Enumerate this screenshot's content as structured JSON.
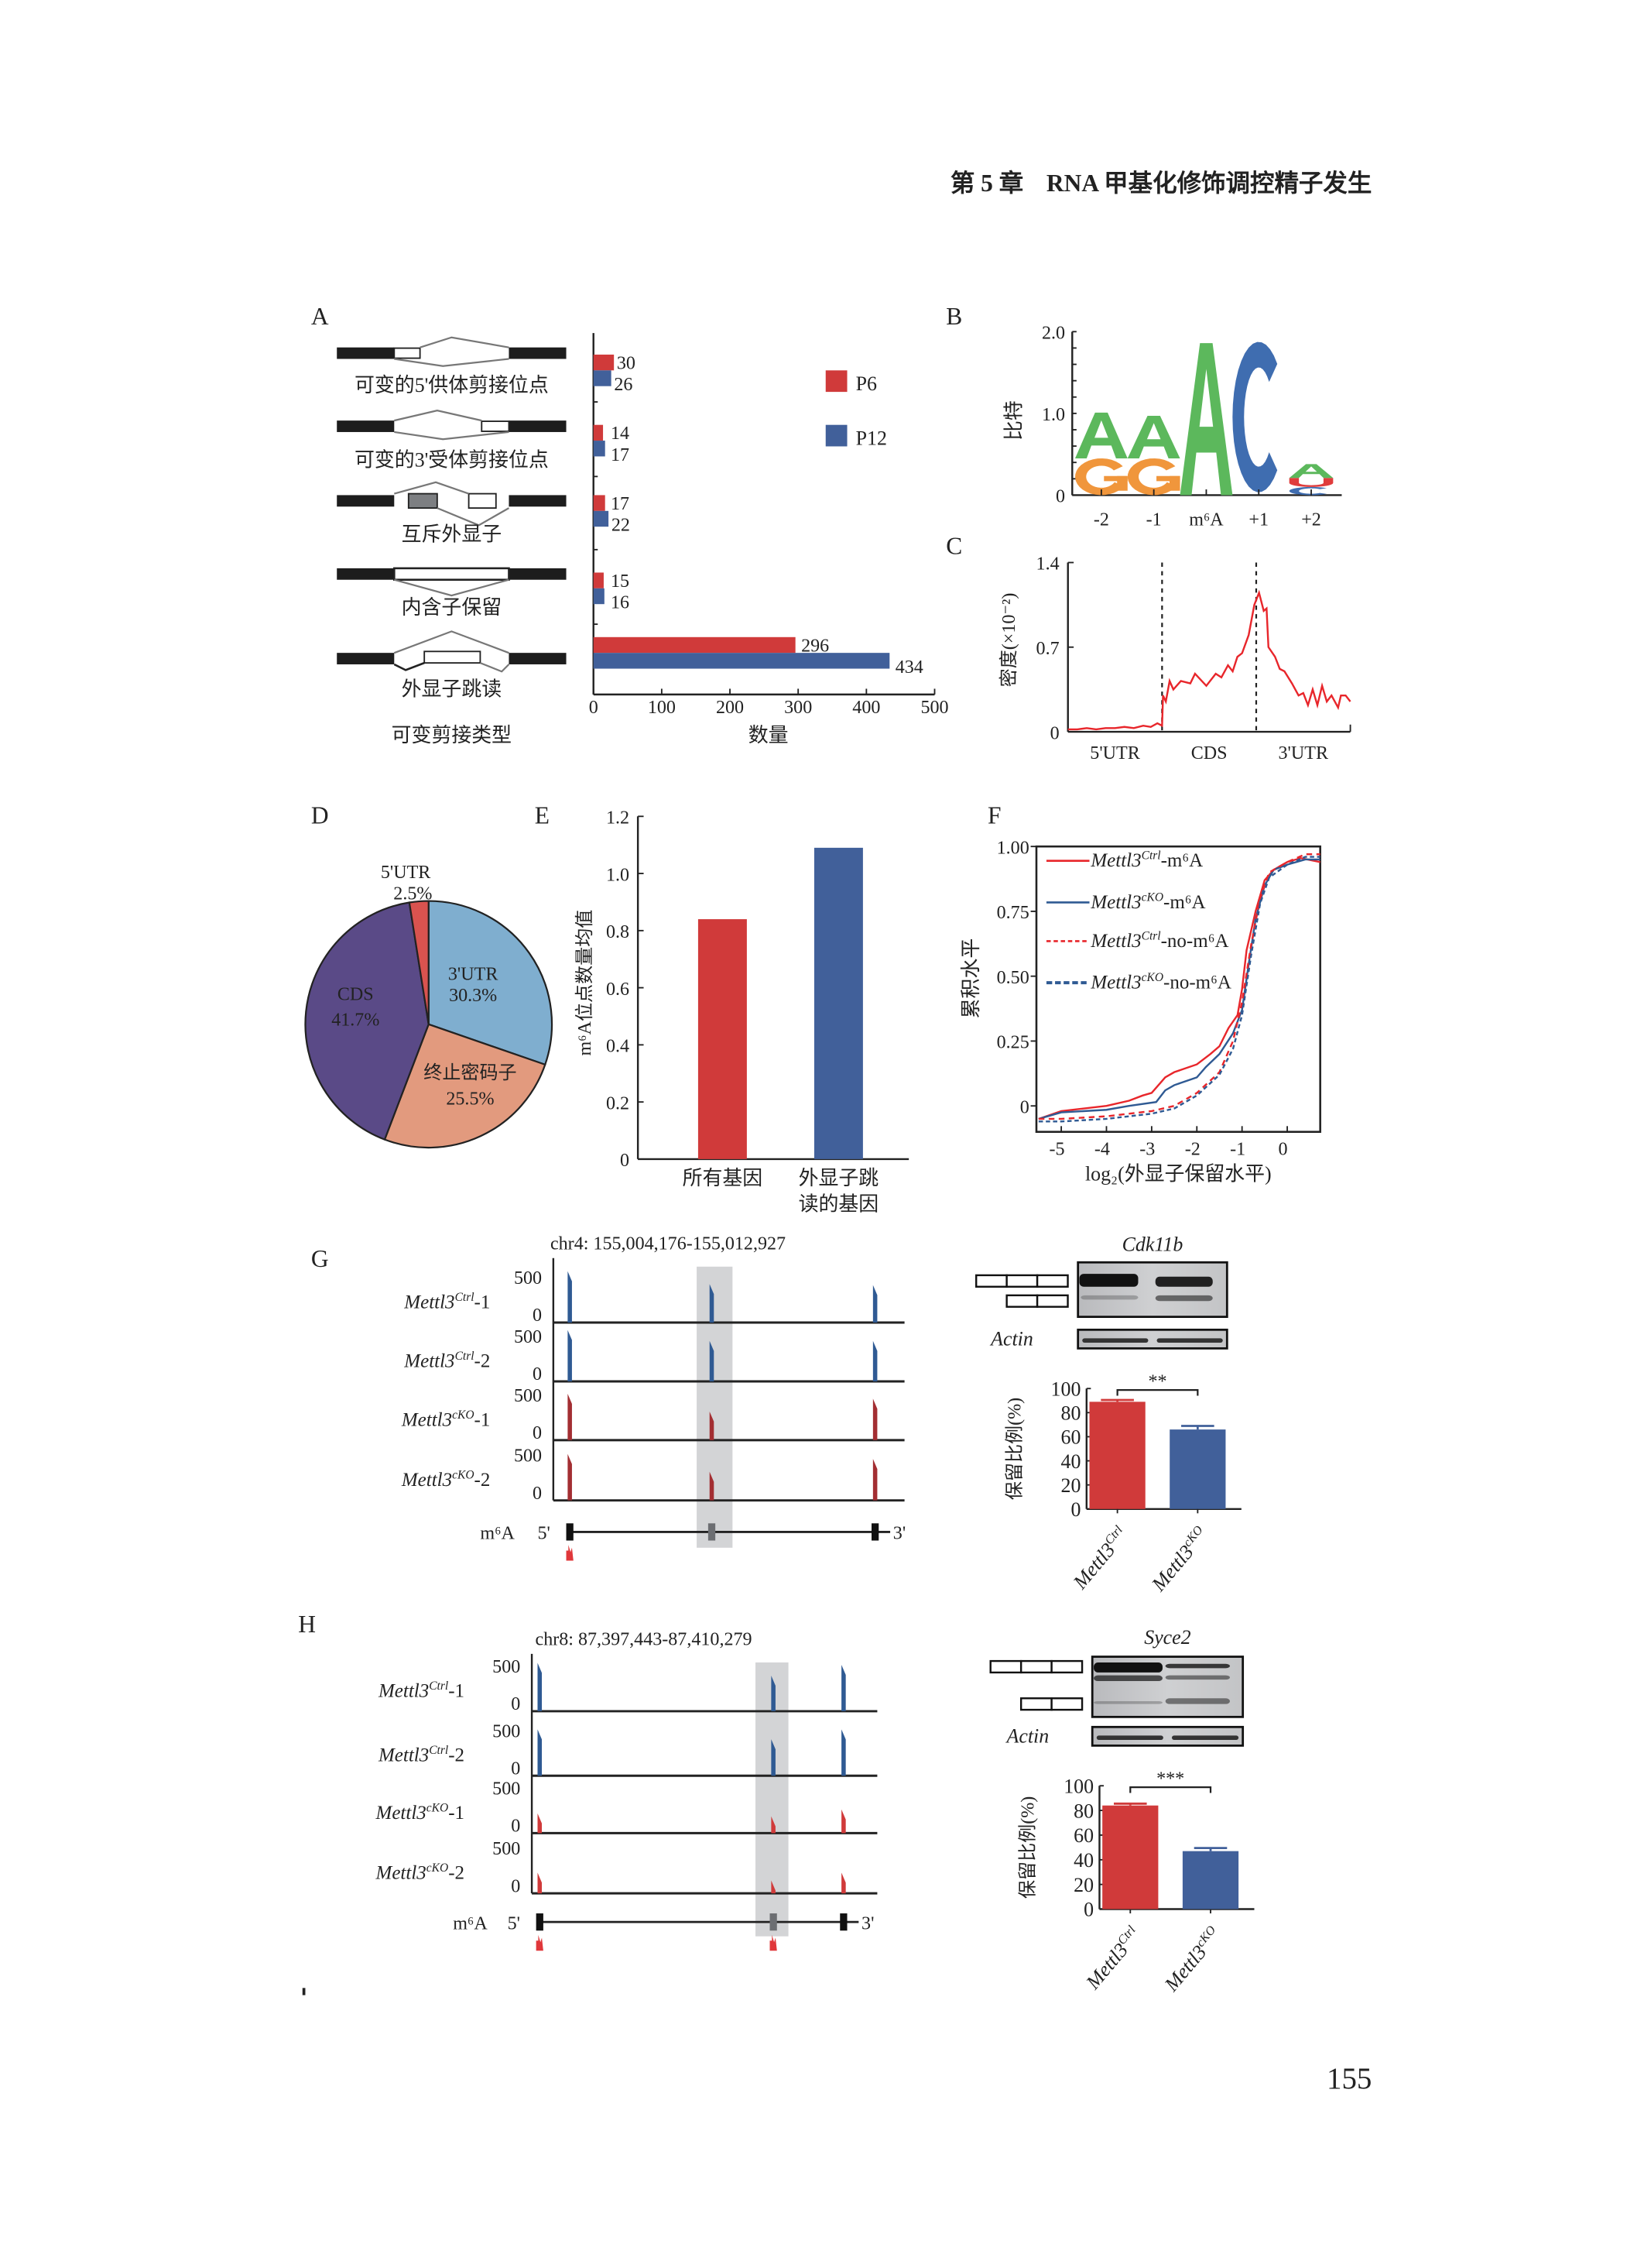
{
  "header": {
    "chapter": "第 5 章",
    "title": "RNA 甲基化修饰调控精子发生"
  },
  "page_number": "155",
  "panel_labels": {
    "A": "A",
    "B": "B",
    "C": "C",
    "D": "D",
    "E": "E",
    "F": "F",
    "G": "G",
    "H": "H"
  },
  "chart_data": [
    {
      "panel": "A",
      "type": "bar",
      "orientation": "horizontal",
      "categories": [
        "可变的5'供体剪接位点",
        "可变的3'受体剪接位点",
        "互斥外显子",
        "内含子保留",
        "外显子跳读"
      ],
      "series": [
        {
          "name": "P6",
          "color": "#D03A3A",
          "values": [
            30,
            14,
            17,
            15,
            296
          ]
        },
        {
          "name": "P12",
          "color": "#41609A",
          "values": [
            26,
            17,
            22,
            16,
            434
          ]
        }
      ],
      "xlabel": "数量",
      "ylabel": "可变剪接类型",
      "xlim": [
        0,
        500
      ],
      "xticks": [
        "0",
        "100",
        "200",
        "300",
        "400",
        "500"
      ],
      "legend": "top-right"
    },
    {
      "panel": "B",
      "type": "sequence-logo",
      "ylabel": "比特",
      "ylim": [
        0,
        2.0
      ],
      "yticks": [
        "0",
        "1.0",
        "2.0"
      ],
      "positions": [
        {
          "label": "-2",
          "letters": [
            {
              "base": "G",
              "bits": 0.45
            },
            {
              "base": "A",
              "bits": 0.56
            }
          ]
        },
        {
          "label": "-1",
          "letters": [
            {
              "base": "G",
              "bits": 0.45
            },
            {
              "base": "A",
              "bits": 0.52
            }
          ]
        },
        {
          "label": "m⁶A",
          "letters": [
            {
              "base": "A",
              "bits": 1.86
            }
          ]
        },
        {
          "label": "+1",
          "letters": [
            {
              "base": "C",
              "bits": 1.84
            }
          ]
        },
        {
          "label": "+2",
          "letters": [
            {
              "base": "C",
              "bits": 0.1
            },
            {
              "base": "U",
              "bits": 0.11
            },
            {
              "base": "A",
              "bits": 0.17
            }
          ]
        }
      ],
      "colors": {
        "A": "#5CB85C",
        "G": "#F0963C",
        "C": "#3F6DB0",
        "U": "#E03C3C"
      }
    },
    {
      "panel": "C",
      "type": "line",
      "ylabel": "密度(×10⁻²)",
      "ylim": [
        0,
        1.4
      ],
      "yticks": [
        "0",
        "0.7",
        "1.4"
      ],
      "regions": [
        "5'UTR",
        "CDS",
        "3'UTR"
      ],
      "color": "#E8262B",
      "points": [
        [
          0,
          0.02
        ],
        [
          0.1,
          0.02
        ],
        [
          0.2,
          0.03
        ],
        [
          0.3,
          0.02
        ],
        [
          0.4,
          0.03
        ],
        [
          0.5,
          0.03
        ],
        [
          0.6,
          0.04
        ],
        [
          0.7,
          0.03
        ],
        [
          0.8,
          0.05
        ],
        [
          0.88,
          0.04
        ],
        [
          0.95,
          0.07
        ],
        [
          1.0,
          0.05
        ],
        [
          1.01,
          0.3
        ],
        [
          1.04,
          0.25
        ],
        [
          1.08,
          0.42
        ],
        [
          1.12,
          0.35
        ],
        [
          1.2,
          0.42
        ],
        [
          1.3,
          0.4
        ],
        [
          1.35,
          0.48
        ],
        [
          1.47,
          0.38
        ],
        [
          1.57,
          0.48
        ],
        [
          1.63,
          0.45
        ],
        [
          1.7,
          0.55
        ],
        [
          1.75,
          0.5
        ],
        [
          1.8,
          0.62
        ],
        [
          1.85,
          0.65
        ],
        [
          1.92,
          0.8
        ],
        [
          1.98,
          1.05
        ],
        [
          2.03,
          1.15
        ],
        [
          2.08,
          1.0
        ],
        [
          2.11,
          1.02
        ],
        [
          2.13,
          0.7
        ],
        [
          2.2,
          0.62
        ],
        [
          2.25,
          0.52
        ],
        [
          2.3,
          0.5
        ],
        [
          2.38,
          0.4
        ],
        [
          2.45,
          0.3
        ],
        [
          2.5,
          0.32
        ],
        [
          2.55,
          0.22
        ],
        [
          2.6,
          0.35
        ],
        [
          2.65,
          0.22
        ],
        [
          2.7,
          0.38
        ],
        [
          2.75,
          0.25
        ],
        [
          2.8,
          0.3
        ],
        [
          2.87,
          0.2
        ],
        [
          2.9,
          0.3
        ],
        [
          2.95,
          0.3
        ],
        [
          3.0,
          0.25
        ]
      ]
    },
    {
      "panel": "D",
      "type": "pie",
      "slices": [
        {
          "label": "3'UTR",
          "value": 30.3,
          "text": "30.3%",
          "color": "#7FAECF"
        },
        {
          "label": "终止密码子",
          "value": 25.5,
          "text": "25.5%",
          "color": "#E29A7E"
        },
        {
          "label": "CDS",
          "value": 41.7,
          "text": "41.7%",
          "color": "#5A4A87"
        },
        {
          "label": "5'UTR",
          "value": 2.5,
          "text": "2.5%",
          "color": "#D9534F"
        }
      ]
    },
    {
      "panel": "E",
      "type": "bar",
      "categories": [
        "所有基因",
        "外显子跳\n读的基因"
      ],
      "values": [
        0.84,
        1.09
      ],
      "colors": [
        "#D03A3A",
        "#41609A"
      ],
      "ylabel": "m⁶A位点数量均值",
      "ylim": [
        0,
        1.2
      ],
      "yticks": [
        "0",
        "0.2",
        "0.4",
        "0.6",
        "0.8",
        "1.0",
        "1.2"
      ]
    },
    {
      "panel": "F",
      "type": "line",
      "xlabel": "log₂(外显子保留水平)",
      "ylabel": "累积水平",
      "xlim": [
        -5.55,
        0.73
      ],
      "ylim": [
        -0.1,
        1.0
      ],
      "xticks": [
        "-5",
        "-4",
        "-3",
        "-2",
        "-1",
        "0"
      ],
      "yticks": [
        "0",
        "0.25",
        "0.50",
        "0.75",
        "1.00"
      ],
      "legend": "top-left",
      "series": [
        {
          "gene": "Mettl3",
          "sup": "Ctrl",
          "suffix": "-m⁶A",
          "color": "#E8262B",
          "style": "solid",
          "points": [
            [
              -5.5,
              -0.05
            ],
            [
              -5,
              -0.02
            ],
            [
              -4,
              0.0
            ],
            [
              -3.5,
              0.02
            ],
            [
              -3.2,
              0.04
            ],
            [
              -3,
              0.05
            ],
            [
              -2.7,
              0.11
            ],
            [
              -2.5,
              0.13
            ],
            [
              -2,
              0.16
            ],
            [
              -1.7,
              0.2
            ],
            [
              -1.5,
              0.23
            ],
            [
              -1.3,
              0.3
            ],
            [
              -1.1,
              0.35
            ],
            [
              -1,
              0.45
            ],
            [
              -0.9,
              0.6
            ],
            [
              -0.7,
              0.75
            ],
            [
              -0.5,
              0.87
            ],
            [
              -0.3,
              0.91
            ],
            [
              0,
              0.94
            ],
            [
              0.3,
              0.955
            ],
            [
              0.73,
              0.94
            ]
          ]
        },
        {
          "gene": "Mettl3",
          "sup": "cKO",
          "suffix": "-m⁶A",
          "color": "#2F5A93",
          "style": "solid",
          "points": [
            [
              -5.5,
              -0.05
            ],
            [
              -5,
              -0.025
            ],
            [
              -4,
              -0.015
            ],
            [
              -3.5,
              0.0
            ],
            [
              -2.9,
              0.015
            ],
            [
              -2.7,
              0.06
            ],
            [
              -2.5,
              0.08
            ],
            [
              -2,
              0.11
            ],
            [
              -1.8,
              0.15
            ],
            [
              -1.5,
              0.2
            ],
            [
              -1.2,
              0.28
            ],
            [
              -1,
              0.37
            ],
            [
              -0.85,
              0.55
            ],
            [
              -0.7,
              0.72
            ],
            [
              -0.5,
              0.85
            ],
            [
              -0.3,
              0.91
            ],
            [
              0,
              0.93
            ],
            [
              0.4,
              0.95
            ],
            [
              0.73,
              0.95
            ]
          ]
        },
        {
          "gene": "Mettl3",
          "sup": "Ctrl",
          "suffix": "-no-m⁶A",
          "color": "#E8262B",
          "style": "dashed",
          "points": [
            [
              -5.5,
              -0.05
            ],
            [
              -5,
              -0.05
            ],
            [
              -4,
              -0.04
            ],
            [
              -3,
              -0.02
            ],
            [
              -2.5,
              0.0
            ],
            [
              -2,
              0.05
            ],
            [
              -1.5,
              0.13
            ],
            [
              -1.2,
              0.25
            ],
            [
              -1,
              0.4
            ],
            [
              -0.8,
              0.62
            ],
            [
              -0.6,
              0.8
            ],
            [
              -0.4,
              0.9
            ],
            [
              0,
              0.94
            ],
            [
              0.4,
              0.97
            ],
            [
              0.73,
              0.97
            ]
          ]
        },
        {
          "gene": "Mettl3",
          "sup": "cKO",
          "suffix": "-no-m⁶A",
          "color": "#2F5A93",
          "style": "dotted",
          "points": [
            [
              -5.5,
              -0.06
            ],
            [
              -5,
              -0.06
            ],
            [
              -4,
              -0.05
            ],
            [
              -3,
              -0.03
            ],
            [
              -2.5,
              -0.01
            ],
            [
              -2,
              0.04
            ],
            [
              -1.5,
              0.12
            ],
            [
              -1.2,
              0.22
            ],
            [
              -1,
              0.35
            ],
            [
              -0.8,
              0.58
            ],
            [
              -0.6,
              0.78
            ],
            [
              -0.4,
              0.88
            ],
            [
              0,
              0.93
            ],
            [
              0.4,
              0.96
            ],
            [
              0.73,
              0.96
            ]
          ]
        }
      ]
    },
    {
      "panel": "G-quant",
      "type": "bar",
      "gene": "Cdk11b",
      "ylabel": "保留比例(%)",
      "ylim": [
        0,
        100
      ],
      "yticks": [
        "0",
        "20",
        "40",
        "60",
        "80",
        "100"
      ],
      "categories": [
        {
          "gene": "Mettl3",
          "sup": "Ctrl"
        },
        {
          "gene": "Mettl3",
          "sup": "cKO"
        }
      ],
      "values": [
        89,
        66
      ],
      "errors": [
        1.5,
        3
      ],
      "colors": [
        "#D03A3A",
        "#41609A"
      ],
      "significance": "**"
    },
    {
      "panel": "H-quant",
      "type": "bar",
      "gene": "Syce2",
      "ylabel": "保留比例(%)",
      "ylim": [
        0,
        100
      ],
      "yticks": [
        "0",
        "20",
        "40",
        "60",
        "80",
        "100"
      ],
      "categories": [
        {
          "gene": "Mettl3",
          "sup": "Ctrl"
        },
        {
          "gene": "Mettl3",
          "sup": "cKO"
        }
      ],
      "values": [
        84,
        47
      ],
      "errors": [
        1.5,
        2.5
      ],
      "colors": [
        "#D03A3A",
        "#41609A"
      ],
      "significance": "***"
    }
  ],
  "tracks": [
    {
      "panel": "G",
      "locus": "chr4: 155,004,176-155,012,927",
      "scale_max": "500",
      "scale_min": "0",
      "samples": [
        {
          "gene": "Mettl3",
          "sup": "Ctrl",
          "suffix": "-1",
          "color": "#2F5A93",
          "peaks": [
            520,
            390,
            380
          ]
        },
        {
          "gene": "Mettl3",
          "sup": "Ctrl",
          "suffix": "-2",
          "color": "#2F5A93",
          "peaks": [
            520,
            410,
            410
          ]
        },
        {
          "gene": "Mettl3",
          "sup": "cKO",
          "suffix": "-1",
          "color": "#A32E32",
          "peaks": [
            470,
            290,
            420
          ]
        },
        {
          "gene": "Mettl3",
          "sup": "cKO",
          "suffix": "-2",
          "color": "#A32E32",
          "peaks": [
            470,
            290,
            420
          ]
        }
      ],
      "gene_model": {
        "m6a_label": "m⁶A",
        "five_prime": "5'",
        "three_prime": "3'"
      }
    },
    {
      "panel": "H",
      "locus": "chr8: 87,397,443-87,410,279",
      "scale_max": "500",
      "scale_min": "0",
      "samples": [
        {
          "gene": "Mettl3",
          "sup": "Ctrl",
          "suffix": "-1",
          "color": "#2F5A93",
          "peaks": [
            490,
            360,
            470
          ]
        },
        {
          "gene": "Mettl3",
          "sup": "Ctrl",
          "suffix": "-2",
          "color": "#2F5A93",
          "peaks": [
            470,
            370,
            470
          ]
        },
        {
          "gene": "Mettl3",
          "sup": "cKO",
          "suffix": "-1",
          "color": "#D03A3A",
          "peaks": [
            200,
            170,
            240
          ]
        },
        {
          "gene": "Mettl3",
          "sup": "cKO",
          "suffix": "-2",
          "color": "#D03A3A",
          "peaks": [
            210,
            130,
            210
          ]
        }
      ],
      "gene_model": {
        "m6a_label": "m⁶A",
        "five_prime": "5'",
        "three_prime": "3'"
      }
    }
  ],
  "gels": [
    {
      "panel": "G",
      "gene": "Cdk11b",
      "loading_control": "Actin"
    },
    {
      "panel": "H",
      "gene": "Syce2",
      "loading_control": "Actin"
    }
  ]
}
